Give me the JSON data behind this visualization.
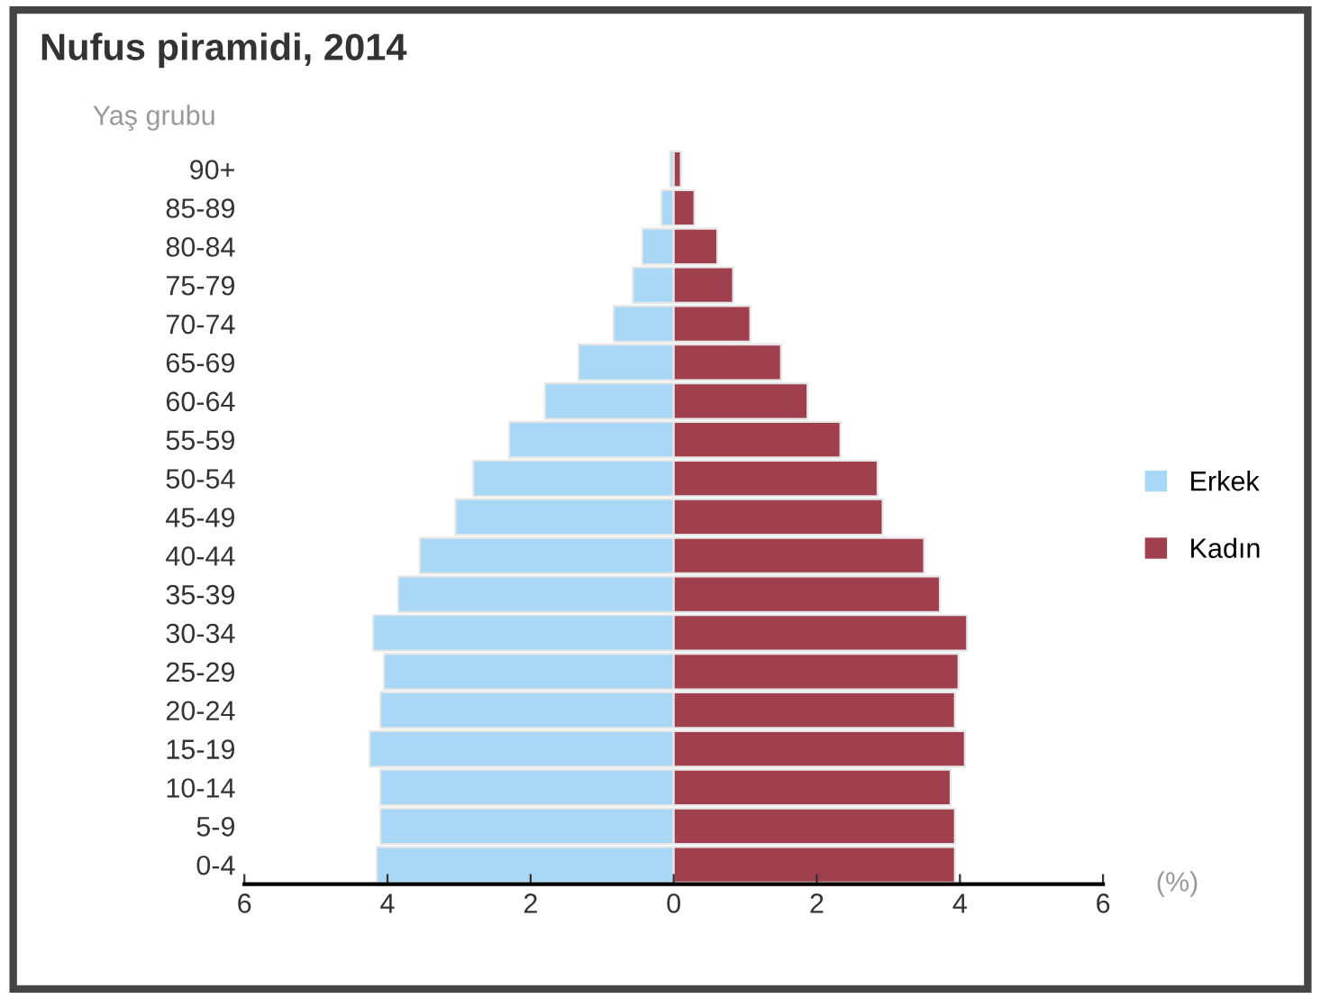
{
  "chart_data": {
    "type": "bar",
    "orientation": "horizontal",
    "stacked": true,
    "title": "Nufus piramidi, 2014",
    "ylabel": "Yaş grubu",
    "categories": [
      "90+",
      "85-89",
      "80-84",
      "75-79",
      "70-74",
      "65-69",
      "60-64",
      "55-59",
      "50-54",
      "45-49",
      "40-44",
      "35-39",
      "30-34",
      "25-29",
      "20-24",
      "15-19",
      "10-14",
      "5-9",
      "0-4"
    ],
    "series": [
      {
        "name": "Erkek",
        "color": "#a8d8f5",
        "values": [
          -0.05,
          -0.17,
          -0.44,
          -0.57,
          -0.84,
          -1.33,
          -1.8,
          -2.3,
          -2.8,
          -3.05,
          -3.55,
          -3.85,
          -4.2,
          -4.05,
          -4.1,
          -4.25,
          -4.1,
          -4.1,
          -4.15
        ]
      },
      {
        "name": "Kadın",
        "color": "#a0404e",
        "values": [
          0.1,
          0.29,
          0.61,
          0.83,
          1.07,
          1.5,
          1.87,
          2.33,
          2.85,
          2.92,
          3.5,
          3.72,
          4.1,
          3.98,
          3.93,
          4.07,
          3.87,
          3.93,
          3.93
        ]
      }
    ],
    "xlim": [
      -6,
      6
    ],
    "xticks": [
      {
        "value": -6,
        "label": "6"
      },
      {
        "value": -4,
        "label": "4"
      },
      {
        "value": -2,
        "label": "2"
      },
      0,
      2,
      4,
      6
    ],
    "annotations": [
      "(%)"
    ],
    "legend": "right",
    "grid": false
  }
}
